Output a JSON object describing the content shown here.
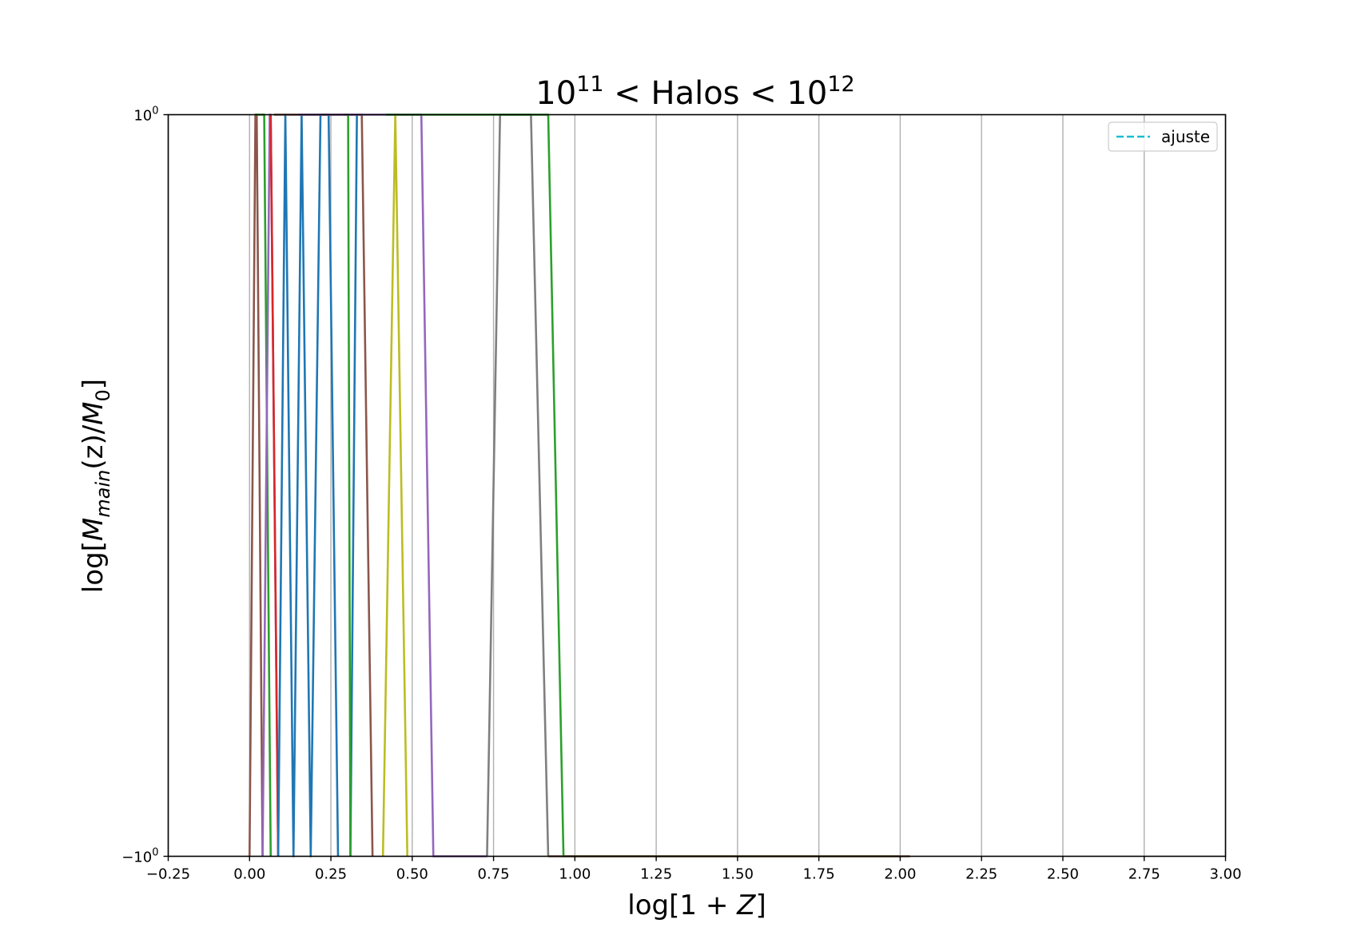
{
  "chart_data": {
    "type": "line",
    "title": {
      "base_left": "10",
      "sup_left": "11",
      "middle": " < Halos < ",
      "base_right": "10",
      "sup_right": "12"
    },
    "xlabel": {
      "prefix": "log[1 + ",
      "italic": "Z",
      "suffix": "]"
    },
    "ylabel": {
      "prefix": "log[",
      "M1": "M",
      "sub1": "main",
      "middle": "(z)/",
      "M2": "M",
      "sub2": "0",
      "suffix": "]"
    },
    "xlim": [
      -0.25,
      3.0
    ],
    "ylim": [
      -1,
      1
    ],
    "x_ticks": [
      -0.25,
      0.0,
      0.25,
      0.5,
      0.75,
      1.0,
      1.25,
      1.5,
      1.75,
      2.0,
      2.25,
      2.5,
      2.75,
      3.0
    ],
    "x_tick_labels": [
      "−0.25",
      "0.00",
      "0.25",
      "0.50",
      "0.75",
      "1.00",
      "1.25",
      "1.50",
      "1.75",
      "2.00",
      "2.25",
      "2.50",
      "2.75",
      "3.00"
    ],
    "y_ticks": [
      {
        "value": 1,
        "base": "10",
        "exp": "0"
      },
      {
        "value": -1,
        "base": "−10",
        "exp": "0"
      }
    ],
    "grid": {
      "x": true,
      "y": false
    },
    "legend": {
      "placement": "top-right",
      "entries": [
        {
          "label": "ajuste",
          "color": "#17becf",
          "style": "dashed"
        }
      ]
    },
    "colors": {
      "blue": "#1f77b4",
      "green": "#2ca02c",
      "red": "#d62728",
      "purple": "#9467bd",
      "brown": "#8c564b",
      "gray": "#7f7f7f",
      "olive": "#bcbd22",
      "cyan": "#17becf"
    },
    "series": [
      {
        "color": "#8c564b",
        "points": [
          [
            0.0,
            -1
          ],
          [
            0.018,
            1
          ],
          [
            0.022,
            1
          ],
          [
            0.04,
            -1
          ]
        ]
      },
      {
        "color": "#2ca02c",
        "points": [
          [
            0.018,
            1
          ],
          [
            0.045,
            1
          ],
          [
            0.065,
            -1
          ]
        ]
      },
      {
        "color": "#9467bd",
        "points": [
          [
            0.04,
            -1
          ],
          [
            0.062,
            1
          ],
          [
            0.065,
            1
          ],
          [
            0.088,
            -1
          ]
        ]
      },
      {
        "color": "#d62728",
        "points": [
          [
            0.065,
            1
          ],
          [
            0.088,
            -1
          ]
        ]
      },
      {
        "color": "#1f77b4",
        "points": [
          [
            0.088,
            -1
          ],
          [
            0.11,
            1
          ],
          [
            0.135,
            -1
          ],
          [
            0.16,
            1
          ],
          [
            0.188,
            -1
          ],
          [
            0.218,
            1
          ],
          [
            0.243,
            1
          ],
          [
            0.272,
            -1
          ]
        ]
      },
      {
        "color": "#1f77b4",
        "points": [
          [
            0.31,
            -1
          ],
          [
            0.33,
            1
          ]
        ]
      },
      {
        "color": "#2ca02c",
        "points": [
          [
            0.29,
            1
          ],
          [
            0.303,
            1
          ],
          [
            0.31,
            -1
          ]
        ]
      },
      {
        "color": "#8c564b",
        "points": [
          [
            0.075,
            1
          ],
          [
            0.345,
            1
          ],
          [
            0.378,
            -1
          ]
        ]
      },
      {
        "color": "#bcbd22",
        "points": [
          [
            0.41,
            -1
          ],
          [
            0.448,
            1
          ],
          [
            0.485,
            -1
          ]
        ]
      },
      {
        "color": "#9467bd",
        "points": [
          [
            0.15,
            1
          ],
          [
            0.528,
            1
          ],
          [
            0.565,
            -1
          ],
          [
            0.73,
            -1
          ]
        ]
      },
      {
        "color": "#7f7f7f",
        "points": [
          [
            0.73,
            -1
          ],
          [
            0.77,
            1
          ],
          [
            0.865,
            1
          ],
          [
            0.918,
            -1
          ]
        ]
      },
      {
        "color": "#2ca02c",
        "points": [
          [
            0.42,
            1
          ],
          [
            0.918,
            1
          ],
          [
            0.965,
            -1
          ],
          [
            2.0,
            -1
          ]
        ]
      },
      {
        "color": "#8c564b",
        "points": [
          [
            0.918,
            -1
          ],
          [
            2.03,
            -1
          ]
        ]
      }
    ]
  }
}
